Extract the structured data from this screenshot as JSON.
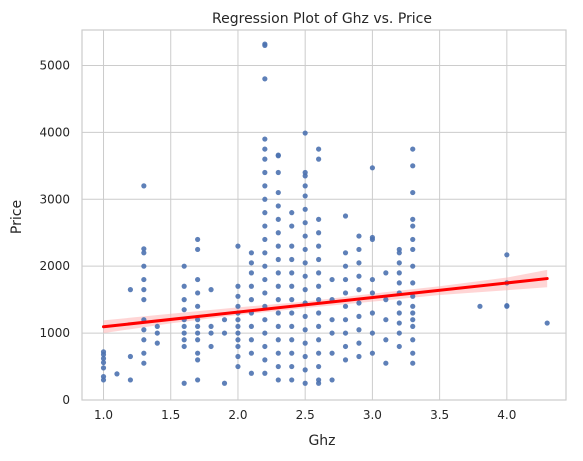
{
  "chart_data": {
    "type": "scatter",
    "title": "Regression Plot of Ghz vs. Price",
    "xlabel": "Ghz",
    "ylabel": "Price",
    "xlim": [
      0.84,
      4.44
    ],
    "ylim": [
      0,
      5530
    ],
    "xticks": [
      1.0,
      1.5,
      2.0,
      2.5,
      3.0,
      3.5,
      4.0
    ],
    "xtick_labels": [
      "1.0",
      "1.5",
      "2.0",
      "2.5",
      "3.0",
      "3.5",
      "4.0"
    ],
    "yticks": [
      0,
      1000,
      2000,
      3000,
      4000,
      5000
    ],
    "ytick_labels": [
      "0",
      "1000",
      "2000",
      "3000",
      "4000",
      "5000"
    ],
    "grid": true,
    "colors": {
      "points": "#4c72b0",
      "regression": "#ff0000",
      "ci_band": "#ffb3b3",
      "grid": "#cccccc",
      "axes": "#cccccc"
    },
    "regression": {
      "x": [
        1.0,
        4.3
      ],
      "y": [
        1095,
        1815
      ]
    },
    "confidence_band": {
      "x": [
        1.0,
        1.5,
        2.0,
        2.5,
        3.0,
        3.5,
        4.0,
        4.3
      ],
      "lower": [
        1000,
        1145,
        1270,
        1375,
        1470,
        1570,
        1640,
        1685
      ],
      "upper": [
        1190,
        1290,
        1385,
        1470,
        1590,
        1700,
        1830,
        1945
      ]
    },
    "series": [
      {
        "points": [
          [
            1.0,
            300
          ],
          [
            1.0,
            350
          ],
          [
            1.0,
            480
          ],
          [
            1.0,
            560
          ],
          [
            1.0,
            620
          ],
          [
            1.0,
            680
          ],
          [
            1.0,
            720
          ],
          [
            1.1,
            390
          ],
          [
            1.2,
            300
          ],
          [
            1.2,
            650
          ],
          [
            1.2,
            1650
          ],
          [
            1.3,
            550
          ],
          [
            1.3,
            700
          ],
          [
            1.3,
            900
          ],
          [
            1.3,
            1050
          ],
          [
            1.3,
            1200
          ],
          [
            1.3,
            1500
          ],
          [
            1.3,
            1650
          ],
          [
            1.3,
            1800
          ],
          [
            1.3,
            2000
          ],
          [
            1.3,
            2200
          ],
          [
            1.3,
            2260
          ],
          [
            1.3,
            3200
          ],
          [
            1.4,
            850
          ],
          [
            1.4,
            1000
          ],
          [
            1.4,
            1100
          ],
          [
            1.6,
            250
          ],
          [
            1.6,
            800
          ],
          [
            1.6,
            900
          ],
          [
            1.6,
            1000
          ],
          [
            1.6,
            1100
          ],
          [
            1.6,
            1200
          ],
          [
            1.6,
            1350
          ],
          [
            1.6,
            1500
          ],
          [
            1.6,
            1700
          ],
          [
            1.6,
            2000
          ],
          [
            1.7,
            300
          ],
          [
            1.7,
            600
          ],
          [
            1.7,
            700
          ],
          [
            1.7,
            900
          ],
          [
            1.7,
            1000
          ],
          [
            1.7,
            1100
          ],
          [
            1.7,
            1200
          ],
          [
            1.7,
            1400
          ],
          [
            1.7,
            1600
          ],
          [
            1.7,
            1800
          ],
          [
            1.7,
            2250
          ],
          [
            1.7,
            2400
          ],
          [
            1.8,
            800
          ],
          [
            1.8,
            1000
          ],
          [
            1.8,
            1100
          ],
          [
            1.8,
            1650
          ],
          [
            1.9,
            250
          ],
          [
            1.9,
            1000
          ],
          [
            1.9,
            1200
          ],
          [
            2.0,
            500
          ],
          [
            2.0,
            650
          ],
          [
            2.0,
            800
          ],
          [
            2.0,
            900
          ],
          [
            2.0,
            1000
          ],
          [
            2.0,
            1100
          ],
          [
            2.0,
            1200
          ],
          [
            2.0,
            1300
          ],
          [
            2.0,
            1400
          ],
          [
            2.0,
            1550
          ],
          [
            2.0,
            1700
          ],
          [
            2.0,
            2300
          ],
          [
            2.1,
            400
          ],
          [
            2.1,
            700
          ],
          [
            2.1,
            900
          ],
          [
            2.1,
            1100
          ],
          [
            2.1,
            1300
          ],
          [
            2.1,
            1500
          ],
          [
            2.1,
            1700
          ],
          [
            2.1,
            1900
          ],
          [
            2.1,
            2050
          ],
          [
            2.1,
            2200
          ],
          [
            2.2,
            400
          ],
          [
            2.2,
            600
          ],
          [
            2.2,
            800
          ],
          [
            2.2,
            1000
          ],
          [
            2.2,
            1200
          ],
          [
            2.2,
            1400
          ],
          [
            2.2,
            1600
          ],
          [
            2.2,
            1800
          ],
          [
            2.2,
            2000
          ],
          [
            2.2,
            2200
          ],
          [
            2.2,
            2400
          ],
          [
            2.2,
            2600
          ],
          [
            2.2,
            2800
          ],
          [
            2.2,
            3000
          ],
          [
            2.2,
            3200
          ],
          [
            2.2,
            3400
          ],
          [
            2.2,
            3600
          ],
          [
            2.2,
            3750
          ],
          [
            2.2,
            3900
          ],
          [
            2.2,
            4800
          ],
          [
            2.2,
            5300
          ],
          [
            2.2,
            5320
          ],
          [
            2.3,
            300
          ],
          [
            2.3,
            500
          ],
          [
            2.3,
            700
          ],
          [
            2.3,
            900
          ],
          [
            2.3,
            1100
          ],
          [
            2.3,
            1300
          ],
          [
            2.3,
            1500
          ],
          [
            2.3,
            1700
          ],
          [
            2.3,
            1900
          ],
          [
            2.3,
            2100
          ],
          [
            2.3,
            2300
          ],
          [
            2.3,
            2500
          ],
          [
            2.3,
            2700
          ],
          [
            2.3,
            2900
          ],
          [
            2.3,
            3100
          ],
          [
            2.3,
            3400
          ],
          [
            2.3,
            3650
          ],
          [
            2.3,
            3660
          ],
          [
            2.4,
            300
          ],
          [
            2.4,
            500
          ],
          [
            2.4,
            700
          ],
          [
            2.4,
            900
          ],
          [
            2.4,
            1100
          ],
          [
            2.4,
            1300
          ],
          [
            2.4,
            1500
          ],
          [
            2.4,
            1700
          ],
          [
            2.4,
            1900
          ],
          [
            2.4,
            2100
          ],
          [
            2.4,
            2300
          ],
          [
            2.4,
            2600
          ],
          [
            2.4,
            2800
          ],
          [
            2.5,
            250
          ],
          [
            2.5,
            450
          ],
          [
            2.5,
            650
          ],
          [
            2.5,
            850
          ],
          [
            2.5,
            1050
          ],
          [
            2.5,
            1250
          ],
          [
            2.5,
            1450
          ],
          [
            2.5,
            1650
          ],
          [
            2.5,
            1850
          ],
          [
            2.5,
            2050
          ],
          [
            2.5,
            2250
          ],
          [
            2.5,
            2450
          ],
          [
            2.5,
            2650
          ],
          [
            2.5,
            2850
          ],
          [
            2.5,
            3050
          ],
          [
            2.5,
            3200
          ],
          [
            2.5,
            3350
          ],
          [
            2.5,
            3400
          ],
          [
            2.5,
            3990
          ],
          [
            2.6,
            250
          ],
          [
            2.6,
            300
          ],
          [
            2.6,
            500
          ],
          [
            2.6,
            700
          ],
          [
            2.6,
            900
          ],
          [
            2.6,
            1100
          ],
          [
            2.6,
            1300
          ],
          [
            2.6,
            1500
          ],
          [
            2.6,
            1700
          ],
          [
            2.6,
            1900
          ],
          [
            2.6,
            2100
          ],
          [
            2.6,
            2300
          ],
          [
            2.6,
            2500
          ],
          [
            2.6,
            2700
          ],
          [
            2.6,
            3600
          ],
          [
            2.6,
            3750
          ],
          [
            2.7,
            300
          ],
          [
            2.7,
            700
          ],
          [
            2.7,
            1000
          ],
          [
            2.7,
            1200
          ],
          [
            2.7,
            1500
          ],
          [
            2.7,
            1800
          ],
          [
            2.8,
            600
          ],
          [
            2.8,
            800
          ],
          [
            2.8,
            1000
          ],
          [
            2.8,
            1200
          ],
          [
            2.8,
            1400
          ],
          [
            2.8,
            1600
          ],
          [
            2.8,
            1800
          ],
          [
            2.8,
            2000
          ],
          [
            2.8,
            2200
          ],
          [
            2.8,
            2750
          ],
          [
            2.9,
            650
          ],
          [
            2.9,
            850
          ],
          [
            2.9,
            1050
          ],
          [
            2.9,
            1250
          ],
          [
            2.9,
            1450
          ],
          [
            2.9,
            1650
          ],
          [
            2.9,
            1850
          ],
          [
            2.9,
            2050
          ],
          [
            2.9,
            2250
          ],
          [
            2.9,
            2450
          ],
          [
            3.0,
            700
          ],
          [
            3.0,
            1000
          ],
          [
            3.0,
            1300
          ],
          [
            3.0,
            1600
          ],
          [
            3.0,
            1800
          ],
          [
            3.0,
            2400
          ],
          [
            3.0,
            2430
          ],
          [
            3.0,
            3470
          ],
          [
            3.1,
            550
          ],
          [
            3.1,
            900
          ],
          [
            3.1,
            1200
          ],
          [
            3.1,
            1500
          ],
          [
            3.1,
            1900
          ],
          [
            3.2,
            800
          ],
          [
            3.2,
            1000
          ],
          [
            3.2,
            1150
          ],
          [
            3.2,
            1300
          ],
          [
            3.2,
            1450
          ],
          [
            3.2,
            1600
          ],
          [
            3.2,
            1750
          ],
          [
            3.2,
            1900
          ],
          [
            3.2,
            2050
          ],
          [
            3.2,
            2200
          ],
          [
            3.2,
            2250
          ],
          [
            3.3,
            550
          ],
          [
            3.3,
            700
          ],
          [
            3.3,
            900
          ],
          [
            3.3,
            1100
          ],
          [
            3.3,
            1200
          ],
          [
            3.3,
            1300
          ],
          [
            3.3,
            1400
          ],
          [
            3.3,
            1550
          ],
          [
            3.3,
            1750
          ],
          [
            3.3,
            2000
          ],
          [
            3.3,
            2250
          ],
          [
            3.3,
            2400
          ],
          [
            3.3,
            2600
          ],
          [
            3.3,
            2700
          ],
          [
            3.3,
            3100
          ],
          [
            3.3,
            3500
          ],
          [
            3.3,
            3750
          ],
          [
            3.8,
            1400
          ],
          [
            4.0,
            1400
          ],
          [
            4.0,
            1410
          ],
          [
            4.0,
            1750
          ],
          [
            4.0,
            2170
          ],
          [
            4.3,
            1150
          ]
        ]
      }
    ]
  }
}
